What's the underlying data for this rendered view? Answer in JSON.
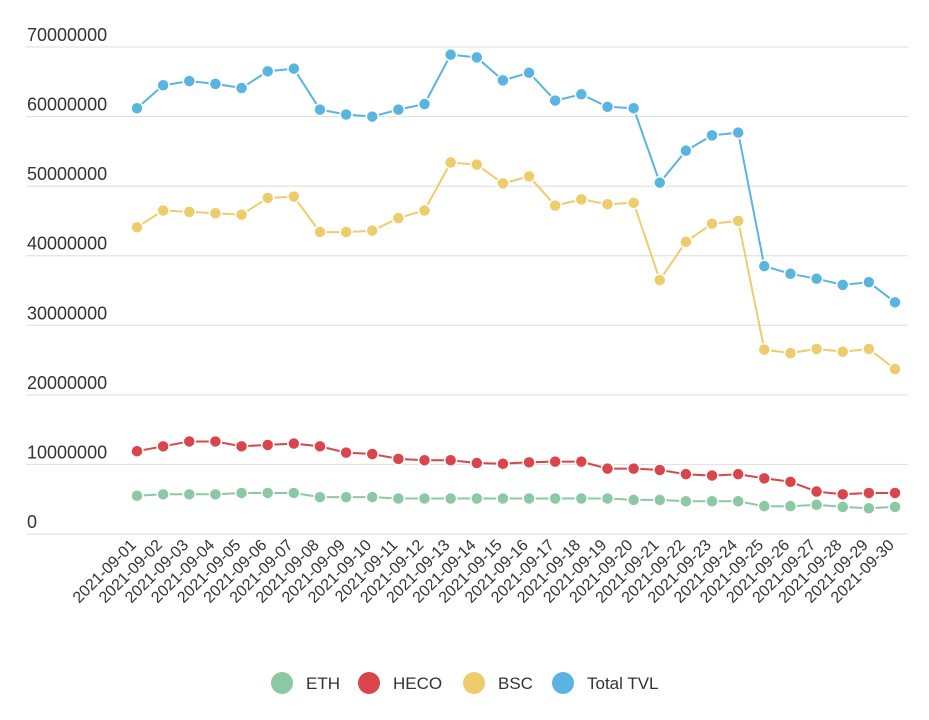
{
  "chart_data": {
    "type": "line",
    "title": "",
    "xlabel": "",
    "ylabel": "",
    "ylim": [
      0,
      70000000
    ],
    "y_ticks": [
      "0",
      "10000000",
      "20000000",
      "30000000",
      "40000000",
      "50000000",
      "60000000",
      "70000000"
    ],
    "grid": "horizontal",
    "legend_position": "bottom",
    "categories": [
      "2021-09-01",
      "2021-09-02",
      "2021-09-03",
      "2021-09-04",
      "2021-09-05",
      "2021-09-06",
      "2021-09-07",
      "2021-09-08",
      "2021-09-09",
      "2021-09-10",
      "2021-09-11",
      "2021-09-12",
      "2021-09-13",
      "2021-09-14",
      "2021-09-15",
      "2021-09-16",
      "2021-09-17",
      "2021-09-18",
      "2021-09-19",
      "2021-09-20",
      "2021-09-21",
      "2021-09-22",
      "2021-09-23",
      "2021-09-24",
      "2021-09-25",
      "2021-09-26",
      "2021-09-27",
      "2021-09-28",
      "2021-09-29",
      "2021-09-30"
    ],
    "series": [
      {
        "name": "ETH",
        "color": "#8dc8a4",
        "values": [
          5500000,
          5700000,
          5700000,
          5700000,
          5900000,
          5900000,
          5900000,
          5300000,
          5300000,
          5300000,
          5100000,
          5100000,
          5100000,
          5100000,
          5100000,
          5100000,
          5100000,
          5100000,
          5100000,
          4900000,
          4900000,
          4700000,
          4700000,
          4700000,
          4000000,
          4000000,
          4200000,
          3900000,
          3700000,
          3900000
        ]
      },
      {
        "name": "HECO",
        "color": "#d9454a",
        "values": [
          11900000,
          12600000,
          13300000,
          13300000,
          12600000,
          12800000,
          13000000,
          12600000,
          11700000,
          11500000,
          10800000,
          10600000,
          10600000,
          10200000,
          10100000,
          10300000,
          10400000,
          10400000,
          9400000,
          9400000,
          9200000,
          8600000,
          8400000,
          8600000,
          8000000,
          7500000,
          6100000,
          5700000,
          5900000,
          5900000
        ]
      },
      {
        "name": "BSC",
        "color": "#efcc6b",
        "values": [
          44100000,
          46500000,
          46300000,
          46100000,
          45900000,
          48300000,
          48500000,
          43400000,
          43400000,
          43600000,
          45400000,
          46500000,
          53400000,
          53100000,
          50400000,
          51400000,
          47200000,
          48100000,
          47400000,
          47600000,
          36500000,
          42000000,
          44600000,
          45000000,
          26500000,
          26000000,
          26600000,
          26200000,
          26600000,
          23700000
        ]
      },
      {
        "name": "Total TVL",
        "color": "#5ab4e1",
        "values": [
          61200000,
          64500000,
          65100000,
          64700000,
          64100000,
          66500000,
          66900000,
          61000000,
          60300000,
          60000000,
          61000000,
          61800000,
          68900000,
          68500000,
          65200000,
          66300000,
          62300000,
          63200000,
          61400000,
          61200000,
          50500000,
          55100000,
          57300000,
          57700000,
          38500000,
          37400000,
          36700000,
          35800000,
          36200000,
          33300000
        ]
      }
    ]
  }
}
